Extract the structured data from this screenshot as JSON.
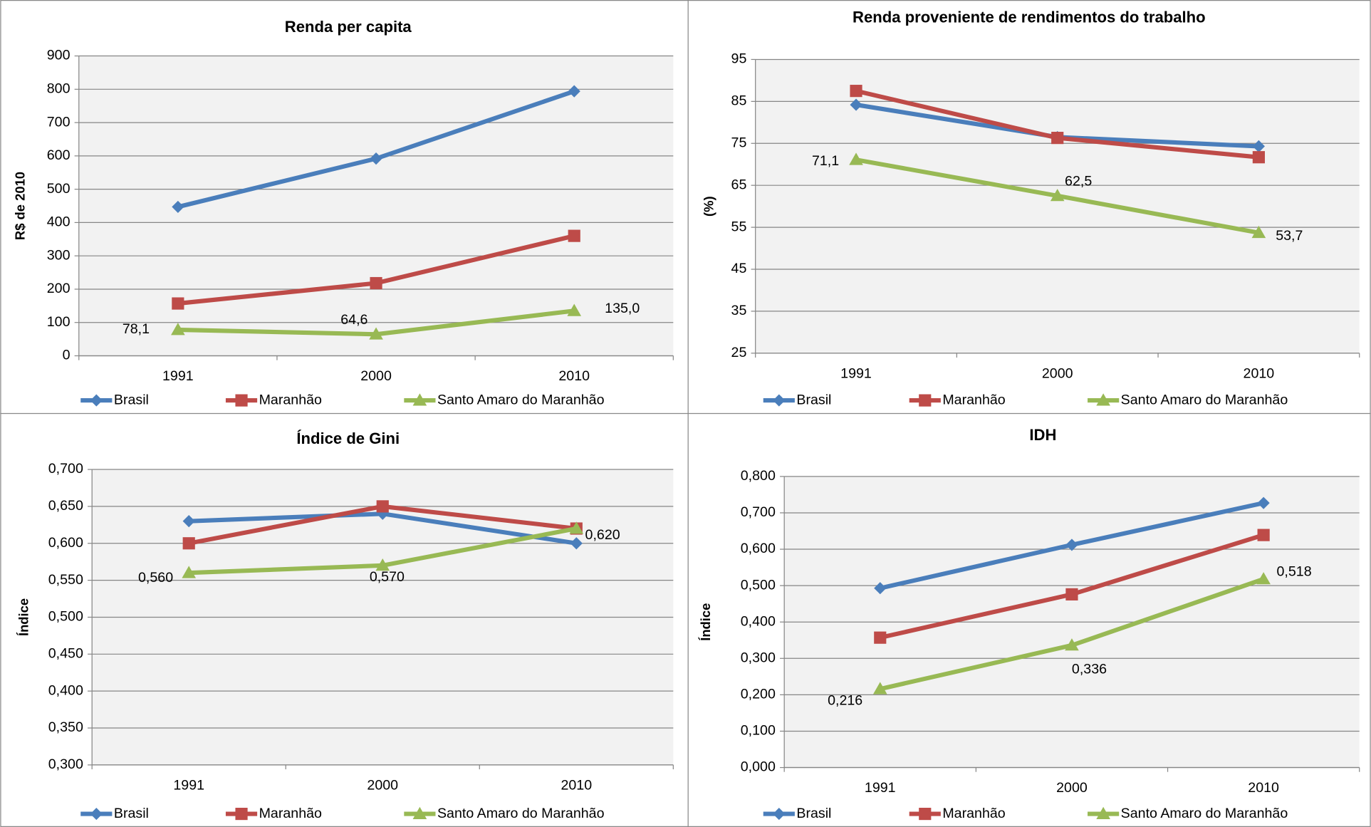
{
  "chart_data": [
    {
      "type": "line",
      "title": "Renda per capita",
      "y_label": "R$ de 2010",
      "categories": [
        "1991",
        "2000",
        "2010"
      ],
      "ylim": [
        0,
        900
      ],
      "yticks": [
        0,
        100,
        200,
        300,
        400,
        500,
        600,
        700,
        800,
        900
      ],
      "grid": true,
      "legend": "bottom",
      "series": [
        {
          "name": "Brasil",
          "color": "#4a7ebb",
          "marker": "diamond",
          "values": [
            447,
            592,
            794
          ]
        },
        {
          "name": "Maranhão",
          "color": "#be4b48",
          "marker": "square",
          "values": [
            157,
            218,
            360
          ]
        },
        {
          "name": "Santo Amaro do Maranhão",
          "color": "#98b954",
          "marker": "triangle",
          "values": [
            78.1,
            64.6,
            135.0
          ],
          "value_labels": [
            "78,1",
            "64,6",
            "135,0"
          ]
        }
      ]
    },
    {
      "type": "line",
      "title": "Renda proveniente de rendimentos do trabalho",
      "y_label": "(%)",
      "categories": [
        "1991",
        "2000",
        "2010"
      ],
      "ylim": [
        25,
        95
      ],
      "yticks": [
        25,
        35,
        45,
        55,
        65,
        75,
        85,
        95
      ],
      "grid": true,
      "legend": "bottom",
      "series": [
        {
          "name": "Brasil",
          "color": "#4a7ebb",
          "marker": "diamond",
          "values": [
            84.2,
            76.5,
            74.3
          ]
        },
        {
          "name": "Maranhão",
          "color": "#be4b48",
          "marker": "square",
          "values": [
            87.5,
            76.3,
            71.7
          ]
        },
        {
          "name": "Santo Amaro do Maranhão",
          "color": "#98b954",
          "marker": "triangle",
          "values": [
            71.1,
            62.5,
            53.7
          ],
          "value_labels": [
            "71,1",
            "62,5",
            "53,7"
          ]
        }
      ]
    },
    {
      "type": "line",
      "title": "Índice de Gini",
      "y_label": "Índice",
      "categories": [
        "1991",
        "2000",
        "2010"
      ],
      "ylim": [
        0.3,
        0.7
      ],
      "yticks": [
        {
          "value": 0.3,
          "label": "0,300"
        },
        {
          "value": 0.35,
          "label": "0,350"
        },
        {
          "value": 0.4,
          "label": "0,400"
        },
        {
          "value": 0.45,
          "label": "0,450"
        },
        {
          "value": 0.5,
          "label": "0,500"
        },
        {
          "value": 0.55,
          "label": "0,550"
        },
        {
          "value": 0.6,
          "label": "0,600"
        },
        {
          "value": 0.65,
          "label": "0,650"
        },
        {
          "value": 0.7,
          "label": "0,700"
        }
      ],
      "grid": true,
      "legend": "bottom",
      "series": [
        {
          "name": "Brasil",
          "color": "#4a7ebb",
          "marker": "diamond",
          "values": [
            0.63,
            0.64,
            0.6
          ]
        },
        {
          "name": "Maranhão",
          "color": "#be4b48",
          "marker": "square",
          "values": [
            0.6,
            0.65,
            0.62
          ]
        },
        {
          "name": "Santo Amaro do Maranhão",
          "color": "#98b954",
          "marker": "triangle",
          "values": [
            0.56,
            0.57,
            0.62
          ],
          "value_labels": [
            "0,560",
            "0,570",
            "0,620"
          ]
        }
      ]
    },
    {
      "type": "line",
      "title": "IDH",
      "y_label": "Índice",
      "categories": [
        "1991",
        "2000",
        "2010"
      ],
      "ylim": [
        0,
        0.8
      ],
      "yticks": [
        {
          "value": 0,
          "label": "0,000"
        },
        {
          "value": 0.1,
          "label": "0,100"
        },
        {
          "value": 0.2,
          "label": "0,200"
        },
        {
          "value": 0.3,
          "label": "0,300"
        },
        {
          "value": 0.4,
          "label": "0,400"
        },
        {
          "value": 0.5,
          "label": "0,500"
        },
        {
          "value": 0.6,
          "label": "0,600"
        },
        {
          "value": 0.7,
          "label": "0,700"
        },
        {
          "value": 0.8,
          "label": "0,800"
        }
      ],
      "grid": true,
      "legend": "bottom",
      "series": [
        {
          "name": "Brasil",
          "color": "#4a7ebb",
          "marker": "diamond",
          "values": [
            0.493,
            0.612,
            0.727
          ]
        },
        {
          "name": "Maranhão",
          "color": "#be4b48",
          "marker": "square",
          "values": [
            0.357,
            0.476,
            0.639
          ]
        },
        {
          "name": "Santo Amaro do Maranhão",
          "color": "#98b954",
          "marker": "triangle",
          "values": [
            0.216,
            0.336,
            0.518
          ],
          "value_labels": [
            "0,216",
            "0,336",
            "0,518"
          ]
        }
      ]
    }
  ]
}
